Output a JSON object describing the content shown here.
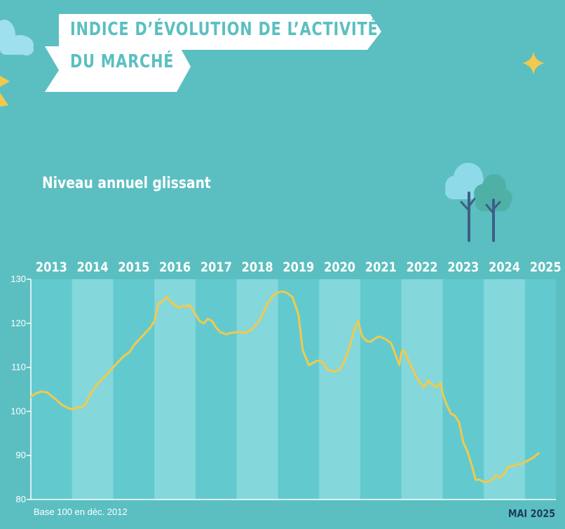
{
  "header": {
    "title_line1": "INDICE D’ÉVOLUTION DE L’ACTIVITÉ",
    "title_line2": "DU MARCHÉ",
    "subtitle": "Niveau annuel glissant"
  },
  "footer": {
    "base_note": "Base 100 en déc. 2012",
    "date": "MAI 2025"
  },
  "colors": {
    "background": "#5bbfc1",
    "plot_area": "#62cacf",
    "band_light": "#84d8dc",
    "line": "#f2c94c",
    "banner": "#ffffff",
    "star": "#f2c94c",
    "cloud": "#9fe0ec",
    "tree_light": "#8edae8",
    "tree_dark": "#4fb1a6",
    "trunk": "#3f5f86",
    "date_text": "#1f3b5c"
  },
  "icons": [
    "cloud-icon",
    "sun-icon",
    "sparkle-star-icon",
    "trees-icon"
  ],
  "chart_data": {
    "type": "line",
    "title": "Niveau annuel glissant",
    "xlabel": "",
    "ylabel": "",
    "ylim": [
      80,
      130
    ],
    "yticks": [
      80,
      90,
      100,
      110,
      120,
      130
    ],
    "ytick_labels": [
      "80",
      "90",
      "100",
      "110",
      "120",
      "130"
    ],
    "xlim": [
      2013.0,
      2025.75
    ],
    "year_labels": [
      "2013",
      "2014",
      "2015",
      "2016",
      "2017",
      "2018",
      "2019",
      "2020",
      "2021",
      "2022",
      "2023",
      "2024",
      "2025"
    ],
    "shaded_years": [
      "2014",
      "2016",
      "2018",
      "2020",
      "2022",
      "2024"
    ],
    "grid": false,
    "legend": "none",
    "series": [
      {
        "x": [
          2013.0,
          2013.1,
          2013.25,
          2013.4,
          2013.5,
          2013.6,
          2013.75,
          2013.9,
          2014.0,
          2014.1,
          2014.25,
          2014.35,
          2014.45,
          2014.6,
          2014.75,
          2014.9,
          2015.0,
          2015.1,
          2015.25,
          2015.4,
          2015.5,
          2015.6,
          2015.75,
          2015.9,
          2016.0,
          2016.1,
          2016.2,
          2016.3,
          2016.4,
          2016.5,
          2016.6,
          2016.7,
          2016.75,
          2016.85,
          2017.0,
          2017.1,
          2017.2,
          2017.3,
          2017.4,
          2017.5,
          2017.6,
          2017.75,
          2017.85,
          2018.0,
          2018.1,
          2018.2,
          2018.35,
          2018.5,
          2018.6,
          2018.75,
          2018.9,
          2019.0,
          2019.1,
          2019.2,
          2019.35,
          2019.5,
          2019.6,
          2019.75,
          2019.85,
          2019.95,
          2020.0,
          2020.1,
          2020.2,
          2020.35,
          2020.5,
          2020.6,
          2020.75,
          2020.85,
          2020.95,
          2021.0,
          2021.05,
          2021.15,
          2021.25,
          2021.35,
          2021.45,
          2021.6,
          2021.75,
          2021.85,
          2021.95,
          2022.0,
          2022.05,
          2022.15,
          2022.25,
          2022.35,
          2022.45,
          2022.55,
          2022.65,
          2022.75,
          2022.85,
          2022.95,
          2023.0,
          2023.1,
          2023.2,
          2023.3,
          2023.4,
          2023.5,
          2023.6,
          2023.7,
          2023.8,
          2023.9,
          2024.0,
          2024.1,
          2024.2,
          2024.3,
          2024.4,
          2024.5,
          2024.6,
          2024.7,
          2024.8,
          2024.9,
          2025.0,
          2025.1,
          2025.2,
          2025.33
        ],
        "values": [
          103.3,
          104.0,
          104.5,
          104.3,
          103.5,
          102.8,
          101.5,
          100.8,
          100.5,
          100.8,
          101.0,
          102.0,
          104.0,
          106.0,
          107.5,
          109.0,
          110.0,
          111.0,
          112.5,
          113.5,
          115.0,
          116.0,
          117.5,
          119.0,
          120.5,
          124.5,
          125.0,
          126.0,
          125.0,
          124.0,
          123.5,
          124.0,
          123.8,
          124.2,
          122.0,
          120.5,
          120.0,
          121.0,
          120.5,
          119.0,
          118.0,
          117.5,
          117.8,
          118.0,
          118.0,
          117.8,
          118.5,
          120.0,
          121.5,
          124.5,
          126.5,
          127.0,
          127.2,
          127.0,
          126.0,
          122.0,
          114.0,
          110.5,
          111.0,
          111.5,
          111.5,
          111.0,
          109.5,
          109.0,
          109.5,
          111.0,
          115.0,
          118.5,
          120.5,
          118.5,
          117.0,
          116.0,
          115.8,
          116.5,
          117.0,
          116.5,
          115.5,
          113.0,
          110.5,
          113.5,
          114.0,
          112.0,
          110.0,
          108.0,
          106.5,
          105.5,
          107.0,
          106.0,
          105.5,
          106.5,
          104.0,
          101.5,
          99.5,
          99.0,
          97.5,
          93.0,
          91.0,
          88.0,
          84.5,
          84.5,
          84.0,
          84.0,
          84.5,
          85.5,
          85.0,
          86.0,
          87.5,
          87.5,
          88.0,
          88.0,
          88.5,
          89.0,
          89.5,
          90.5
        ]
      }
    ]
  }
}
